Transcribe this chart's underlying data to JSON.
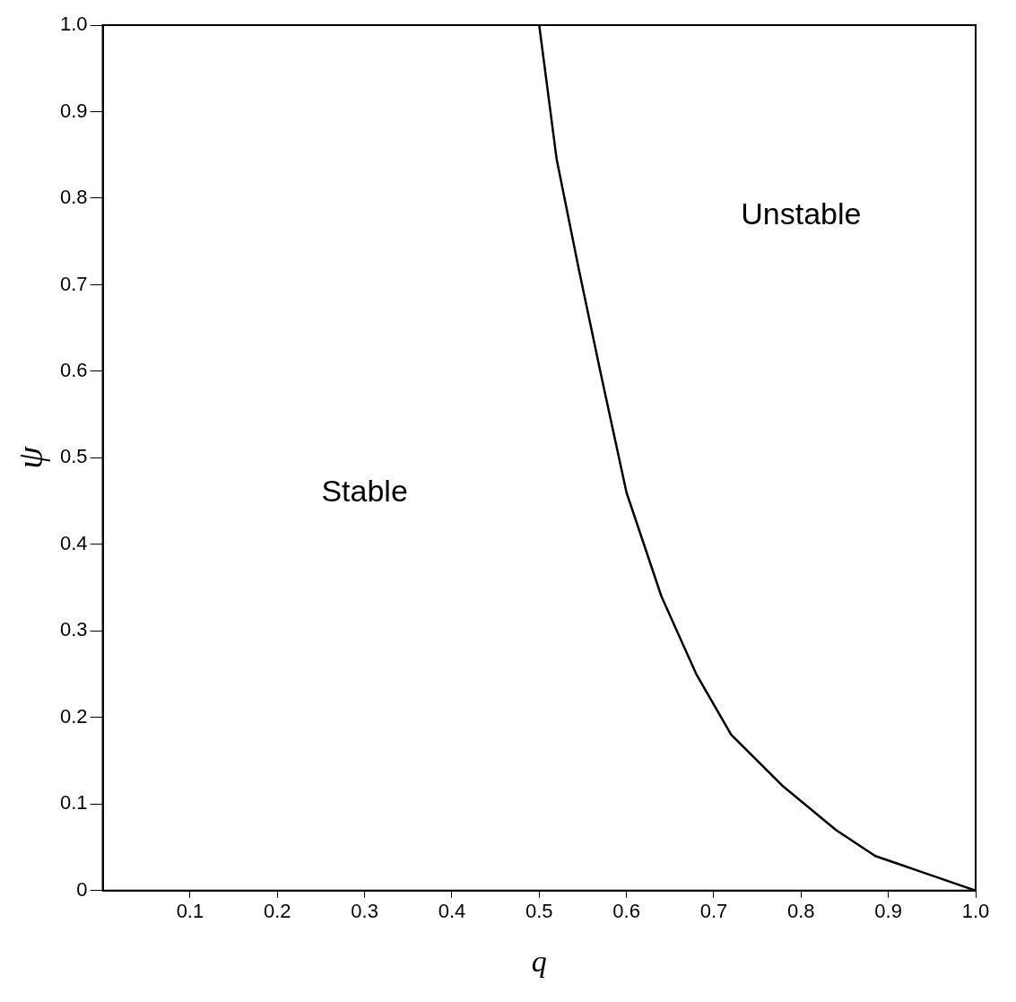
{
  "chart_data": {
    "type": "line",
    "xlabel": "q",
    "ylabel": "ψ",
    "x": [
      0.5,
      0.52,
      0.545,
      0.57,
      0.6,
      0.64,
      0.68,
      0.72,
      0.78,
      0.84,
      0.885,
      1.0
    ],
    "series": [
      {
        "color": "#000000",
        "values": [
          1.0,
          0.845,
          0.72,
          0.6,
          0.46,
          0.34,
          0.25,
          0.18,
          0.12,
          0.07,
          0.04,
          0
        ]
      }
    ],
    "xlim": [
      0,
      1
    ],
    "ylim": [
      0,
      1
    ],
    "xticks": [
      0.1,
      0.2,
      0.3,
      0.4,
      0.5,
      0.6,
      0.7,
      0.8,
      0.9,
      {
        "value": 1,
        "label": "1.0"
      }
    ],
    "yticks": [
      {
        "value": 0,
        "label": "0"
      },
      0.1,
      0.2,
      0.3,
      0.4,
      0.5,
      0.6,
      0.7,
      0.8,
      0.9,
      {
        "value": 1,
        "label": "1.0"
      }
    ],
    "grid": false,
    "legend": false,
    "marker": "none",
    "line_style": "solid",
    "annotations": [
      "Stable",
      "Unstable"
    ]
  }
}
